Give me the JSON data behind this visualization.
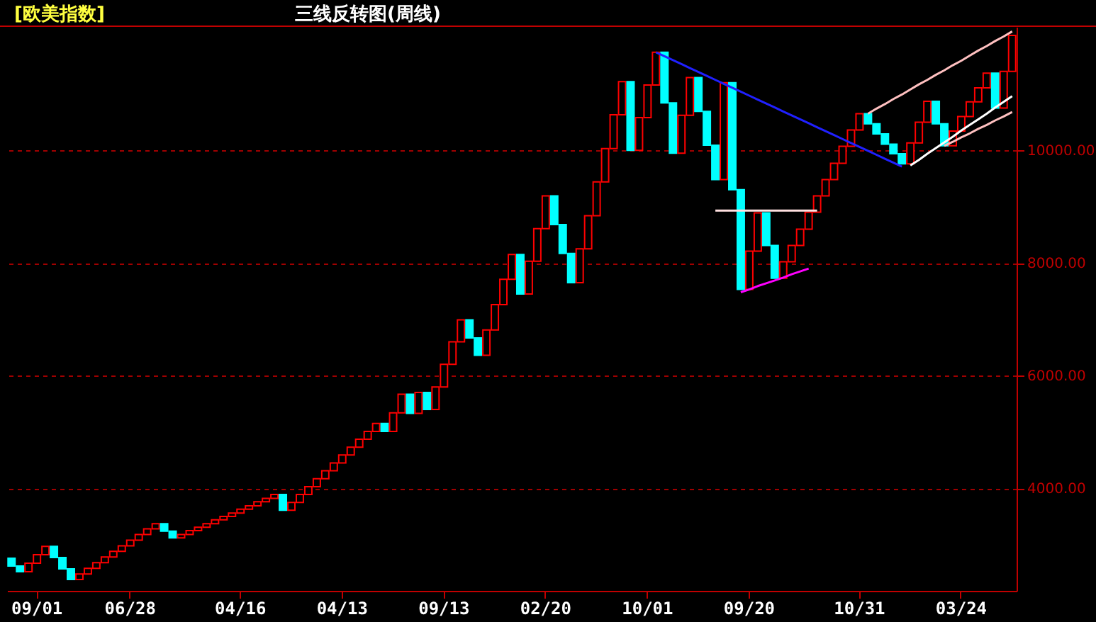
{
  "chart_data": {
    "type": "bar",
    "title": "三线反转图(周线)",
    "subtitle": "[欧美指数]",
    "categories": [
      null,
      null,
      null,
      "09/01",
      null,
      null,
      null,
      null,
      null,
      null,
      null,
      null,
      null,
      null,
      "06/28",
      null,
      null,
      null,
      null,
      null,
      null,
      null,
      null,
      null,
      null,
      null,
      null,
      "04/16",
      null,
      null,
      null,
      null,
      null,
      null,
      null,
      null,
      null,
      null,
      null,
      "04/13",
      null,
      null,
      null,
      null,
      null,
      null,
      null,
      null,
      null,
      null,
      null,
      "09/13",
      null,
      null,
      null,
      null,
      null,
      null,
      null,
      null,
      null,
      null,
      null,
      "02/20",
      null,
      null,
      null,
      null,
      null,
      null,
      null,
      null,
      null,
      null,
      null,
      "10/01",
      null,
      null,
      null,
      null,
      null,
      null,
      null,
      null,
      null,
      null,
      null,
      "09/20",
      null,
      null,
      null,
      null,
      null,
      null,
      null,
      null,
      null,
      null,
      null,
      null,
      "10/31",
      null,
      null,
      null,
      null,
      null,
      null,
      null,
      null,
      null,
      null,
      null,
      "03/24",
      null,
      null,
      null,
      null,
      null,
      null
    ],
    "base": [
      2760,
      2620,
      2520,
      2670,
      2820,
      2970,
      2770,
      2570,
      2380,
      2480,
      2580,
      2680,
      2780,
      2880,
      2980,
      3080,
      3180,
      3280,
      3370,
      3240,
      3120,
      3180,
      3250,
      3310,
      3370,
      3440,
      3500,
      3560,
      3630,
      3690,
      3760,
      3820,
      3890,
      3610,
      3750,
      3890,
      4030,
      4170,
      4310,
      4450,
      4590,
      4730,
      4870,
      5010,
      5150,
      5010,
      5340,
      5670,
      5330,
      5700,
      5400,
      5800,
      6200,
      6600,
      6990,
      6670,
      6360,
      6810,
      7260,
      7710,
      8150,
      7450,
      8030,
      8610,
      9190,
      8680,
      8170,
      7650,
      8250,
      8840,
      9440,
      10030,
      10630,
      11220,
      10000,
      10580,
      11160,
      11740,
      10840,
      9950,
      10620,
      11290,
      10690,
      10090,
      9480,
      11200,
      9300,
      7530,
      8210,
      8890,
      8310,
      7730,
      8020,
      8310,
      8600,
      8900,
      9190,
      9480,
      9770,
      10070,
      10360,
      10650,
      10470,
      10290,
      10110,
      9940,
      9760,
      10130,
      10500,
      10870,
      10470,
      10080,
      10340,
      10600,
      10860,
      11110,
      11370,
      10750,
      11400
    ],
    "values": [
      -140,
      -100,
      150,
      150,
      150,
      -200,
      -200,
      -190,
      100,
      100,
      100,
      100,
      100,
      100,
      100,
      100,
      100,
      90,
      -130,
      -120,
      60,
      70,
      60,
      60,
      70,
      60,
      60,
      70,
      60,
      70,
      60,
      70,
      -280,
      140,
      140,
      140,
      140,
      140,
      140,
      140,
      140,
      140,
      140,
      140,
      -140,
      330,
      330,
      -340,
      370,
      -300,
      400,
      400,
      400,
      390,
      -320,
      -310,
      450,
      450,
      450,
      440,
      -700,
      580,
      580,
      580,
      -510,
      -510,
      -520,
      600,
      590,
      600,
      590,
      600,
      590,
      -1220,
      580,
      580,
      580,
      -900,
      -890,
      670,
      670,
      -600,
      -600,
      -610,
      1720,
      -1900,
      -1770,
      680,
      680,
      -580,
      -580,
      290,
      290,
      290,
      300,
      290,
      290,
      290,
      300,
      290,
      290,
      -180,
      -180,
      -180,
      -170,
      -180,
      370,
      370,
      370,
      -400,
      -390,
      260,
      260,
      260,
      250,
      260,
      -620,
      650,
      640
    ],
    "colors": [
      "#00ffff",
      "#00ffff",
      "#ff0000",
      "#ff0000",
      "#ff0000",
      "#00ffff",
      "#00ffff",
      "#00ffff",
      "#ff0000",
      "#ff0000",
      "#ff0000",
      "#ff0000",
      "#ff0000",
      "#ff0000",
      "#ff0000",
      "#ff0000",
      "#ff0000",
      "#ff0000",
      "#00ffff",
      "#00ffff",
      "#ff0000",
      "#ff0000",
      "#ff0000",
      "#ff0000",
      "#ff0000",
      "#ff0000",
      "#ff0000",
      "#ff0000",
      "#ff0000",
      "#ff0000",
      "#ff0000",
      "#ff0000",
      "#00ffff",
      "#ff0000",
      "#ff0000",
      "#ff0000",
      "#ff0000",
      "#ff0000",
      "#ff0000",
      "#ff0000",
      "#ff0000",
      "#ff0000",
      "#ff0000",
      "#ff0000",
      "#00ffff",
      "#ff0000",
      "#ff0000",
      "#00ffff",
      "#ff0000",
      "#00ffff",
      "#ff0000",
      "#ff0000",
      "#ff0000",
      "#ff0000",
      "#00ffff",
      "#00ffff",
      "#ff0000",
      "#ff0000",
      "#ff0000",
      "#ff0000",
      "#00ffff",
      "#ff0000",
      "#ff0000",
      "#ff0000",
      "#00ffff",
      "#00ffff",
      "#00ffff",
      "#ff0000",
      "#ff0000",
      "#ff0000",
      "#ff0000",
      "#ff0000",
      "#ff0000",
      "#00ffff",
      "#ff0000",
      "#ff0000",
      "#ff0000",
      "#00ffff",
      "#00ffff",
      "#ff0000",
      "#ff0000",
      "#00ffff",
      "#00ffff",
      "#00ffff",
      "#ff0000",
      "#00ffff",
      "#00ffff",
      "#ff0000",
      "#ff0000",
      "#00ffff",
      "#00ffff",
      "#ff0000",
      "#ff0000",
      "#ff0000",
      "#ff0000",
      "#ff0000",
      "#ff0000",
      "#ff0000",
      "#ff0000",
      "#ff0000",
      "#ff0000",
      "#00ffff",
      "#00ffff",
      "#00ffff",
      "#00ffff",
      "#00ffff",
      "#ff0000",
      "#ff0000",
      "#ff0000",
      "#00ffff",
      "#00ffff",
      "#ff0000",
      "#ff0000",
      "#ff0000",
      "#ff0000",
      "#ff0000",
      "#00ffff",
      "#ff0000",
      "#ff0000"
    ],
    "series": [
      {
        "type": "line",
        "color": "#2020ff",
        "values": [
          null,
          null,
          null,
          null,
          null,
          null,
          null,
          null,
          null,
          null,
          null,
          null,
          null,
          null,
          null,
          null,
          null,
          null,
          null,
          null,
          null,
          null,
          null,
          null,
          null,
          null,
          null,
          null,
          null,
          null,
          null,
          null,
          null,
          null,
          null,
          null,
          null,
          null,
          null,
          null,
          null,
          null,
          null,
          null,
          null,
          null,
          null,
          null,
          null,
          null,
          null,
          null,
          null,
          null,
          null,
          null,
          null,
          null,
          null,
          null,
          null,
          null,
          null,
          null,
          null,
          null,
          null,
          null,
          null,
          null,
          null,
          null,
          null,
          null,
          null,
          null,
          11740,
          11670,
          11600,
          11530,
          11460,
          11390,
          11320,
          11250,
          11180,
          11110,
          11040,
          10970,
          10900,
          10830,
          10760,
          10690,
          10620,
          10550,
          10480,
          10410,
          10340,
          10270,
          10200,
          10130,
          10060,
          9990,
          9920,
          9850,
          9780,
          9710,
          null,
          null,
          null,
          null,
          null,
          null,
          null,
          null,
          null,
          null,
          null,
          null,
          null
        ]
      },
      {
        "type": "line",
        "color": "#ffe0e0",
        "values": [
          null,
          null,
          null,
          null,
          null,
          null,
          null,
          null,
          null,
          null,
          null,
          null,
          null,
          null,
          null,
          null,
          null,
          null,
          null,
          null,
          null,
          null,
          null,
          null,
          null,
          null,
          null,
          null,
          null,
          null,
          null,
          null,
          null,
          null,
          null,
          null,
          null,
          null,
          null,
          null,
          null,
          null,
          null,
          null,
          null,
          null,
          null,
          null,
          null,
          null,
          null,
          null,
          null,
          null,
          null,
          null,
          null,
          null,
          null,
          null,
          null,
          null,
          null,
          null,
          null,
          null,
          null,
          null,
          null,
          null,
          null,
          null,
          null,
          null,
          null,
          null,
          null,
          null,
          null,
          null,
          null,
          null,
          null,
          8930,
          8930,
          8930,
          8930,
          8930,
          8930,
          8930,
          8930,
          8930,
          8930,
          8930,
          8930,
          8930,
          null,
          null,
          null,
          null,
          null,
          null,
          null,
          null,
          null,
          null,
          null,
          null,
          null,
          null,
          null,
          null,
          null,
          null,
          null,
          null,
          null,
          null,
          null
        ]
      },
      {
        "type": "line",
        "color": "#ff00ff",
        "values": [
          null,
          null,
          null,
          null,
          null,
          null,
          null,
          null,
          null,
          null,
          null,
          null,
          null,
          null,
          null,
          null,
          null,
          null,
          null,
          null,
          null,
          null,
          null,
          null,
          null,
          null,
          null,
          null,
          null,
          null,
          null,
          null,
          null,
          null,
          null,
          null,
          null,
          null,
          null,
          null,
          null,
          null,
          null,
          null,
          null,
          null,
          null,
          null,
          null,
          null,
          null,
          null,
          null,
          null,
          null,
          null,
          null,
          null,
          null,
          null,
          null,
          null,
          null,
          null,
          null,
          null,
          null,
          null,
          null,
          null,
          null,
          null,
          null,
          null,
          null,
          null,
          null,
          null,
          null,
          null,
          null,
          null,
          null,
          null,
          null,
          null,
          7480,
          7530,
          7590,
          7640,
          7690,
          7740,
          7800,
          7850,
          7900,
          null,
          null,
          null,
          null,
          null,
          null,
          null,
          null,
          null,
          null,
          null,
          null,
          null,
          null,
          null,
          null,
          null,
          null,
          null,
          null,
          null,
          null,
          null,
          null
        ]
      },
      {
        "type": "line",
        "color": "#ffc0c0",
        "values": [
          null,
          null,
          null,
          null,
          null,
          null,
          null,
          null,
          null,
          null,
          null,
          null,
          null,
          null,
          null,
          null,
          null,
          null,
          null,
          null,
          null,
          null,
          null,
          null,
          null,
          null,
          null,
          null,
          null,
          null,
          null,
          null,
          null,
          null,
          null,
          null,
          null,
          null,
          null,
          null,
          null,
          null,
          null,
          null,
          null,
          null,
          null,
          null,
          null,
          null,
          null,
          null,
          null,
          null,
          null,
          null,
          null,
          null,
          null,
          null,
          null,
          null,
          null,
          null,
          null,
          null,
          null,
          null,
          null,
          null,
          null,
          null,
          null,
          null,
          null,
          null,
          null,
          null,
          null,
          null,
          null,
          null,
          null,
          null,
          null,
          null,
          null,
          null,
          null,
          null,
          null,
          null,
          null,
          null,
          null,
          null,
          null,
          null,
          null,
          null,
          null,
          10650,
          10740,
          10820,
          10910,
          10990,
          11080,
          11170,
          11250,
          11340,
          11420,
          11510,
          11590,
          11680,
          11770,
          11850,
          11940,
          12020,
          12110
        ]
      },
      {
        "type": "line",
        "color": "#ffffff",
        "values": [
          null,
          null,
          null,
          null,
          null,
          null,
          null,
          null,
          null,
          null,
          null,
          null,
          null,
          null,
          null,
          null,
          null,
          null,
          null,
          null,
          null,
          null,
          null,
          null,
          null,
          null,
          null,
          null,
          null,
          null,
          null,
          null,
          null,
          null,
          null,
          null,
          null,
          null,
          null,
          null,
          null,
          null,
          null,
          null,
          null,
          null,
          null,
          null,
          null,
          null,
          null,
          null,
          null,
          null,
          null,
          null,
          null,
          null,
          null,
          null,
          null,
          null,
          null,
          null,
          null,
          null,
          null,
          null,
          null,
          null,
          null,
          null,
          null,
          null,
          null,
          null,
          null,
          null,
          null,
          null,
          null,
          null,
          null,
          null,
          null,
          null,
          null,
          null,
          null,
          null,
          null,
          null,
          null,
          null,
          null,
          null,
          null,
          null,
          null,
          null,
          null,
          null,
          null,
          null,
          null,
          null,
          9730,
          9830,
          9940,
          10040,
          10140,
          10240,
          10350,
          10450,
          10550,
          10650,
          10760,
          10860,
          10960
        ]
      },
      {
        "type": "line",
        "color": "#ffc0c0",
        "values": [
          null,
          null,
          null,
          null,
          null,
          null,
          null,
          null,
          null,
          null,
          null,
          null,
          null,
          null,
          null,
          null,
          null,
          null,
          null,
          null,
          null,
          null,
          null,
          null,
          null,
          null,
          null,
          null,
          null,
          null,
          null,
          null,
          null,
          null,
          null,
          null,
          null,
          null,
          null,
          null,
          null,
          null,
          null,
          null,
          null,
          null,
          null,
          null,
          null,
          null,
          null,
          null,
          null,
          null,
          null,
          null,
          null,
          null,
          null,
          null,
          null,
          null,
          null,
          null,
          null,
          null,
          null,
          null,
          null,
          null,
          null,
          null,
          null,
          null,
          null,
          null,
          null,
          null,
          null,
          null,
          null,
          null,
          null,
          null,
          null,
          null,
          null,
          null,
          null,
          null,
          null,
          null,
          null,
          null,
          null,
          null,
          null,
          null,
          null,
          null,
          null,
          null,
          null,
          null,
          null,
          null,
          null,
          null,
          null,
          null,
          10080,
          10150,
          10230,
          10300,
          10380,
          10450,
          10530,
          10600,
          10680
        ]
      }
    ],
    "ylim": [
      2180,
      12190
    ],
    "yticks": [
      {
        "value": 4000,
        "label": "4000.00"
      },
      {
        "value": 6000,
        "label": "6000.00"
      },
      {
        "value": 8000,
        "label": "8000.00"
      },
      {
        "value": 10000,
        "label": "10000.00"
      }
    ],
    "grid": "y"
  }
}
